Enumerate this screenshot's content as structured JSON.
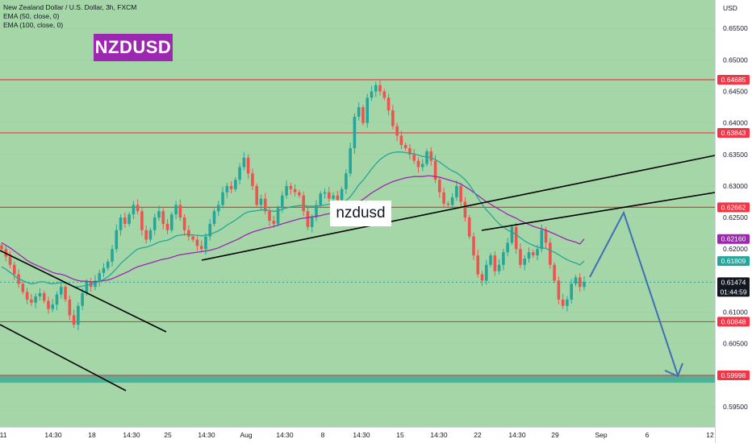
{
  "legend": {
    "symbol": "New Zealand Dollar / U.S. Dollar, 3h, FXCM",
    "ema50": "EMA (50, close, 0)",
    "ema100": "EMA (100, close, 0)"
  },
  "title_badge": "NZDUSD",
  "label_badge": "nzdusd",
  "colors": {
    "background": "#a5d6a7",
    "zone": "#4db394",
    "bull": "#26a69a",
    "bear": "#ef5350",
    "ema50": "#26a69a",
    "ema100": "#9c27b0",
    "hline": "#f23645",
    "trend": "#000000",
    "projection": "#3f6fb5"
  },
  "chart_data": {
    "type": "line",
    "title": "New Zealand Dollar / U.S. Dollar, 3h, FXCM",
    "currency": "USD",
    "ylim": [
      0.5918,
      0.6595
    ],
    "price_ticks": [
      "0.65500",
      "0.65000",
      "0.64500",
      "0.64000",
      "0.63500",
      "0.63000",
      "0.62500",
      "0.62000",
      "0.61500",
      "0.61000",
      "0.60500",
      "0.60000",
      "0.59500"
    ],
    "x_ticks": [
      "11",
      "14:30",
      "18",
      "14:30",
      "25",
      "14:30",
      "Aug",
      "14:30",
      "8",
      "14:30",
      "15",
      "14:30",
      "22",
      "14:30",
      "29",
      "Sep",
      "6",
      "12"
    ],
    "price_labels": [
      {
        "text": "0.64685",
        "value": 0.64685,
        "color": "#f23645"
      },
      {
        "text": "0.63843",
        "value": 0.63843,
        "color": "#f23645"
      },
      {
        "text": "0.62662",
        "value": 0.62662,
        "color": "#f23645"
      },
      {
        "text": "0.62160",
        "value": 0.6216,
        "color": "#9c27b0"
      },
      {
        "text": "0.61809",
        "value": 0.61809,
        "color": "#26a69a"
      },
      {
        "text": "0.61474",
        "value": 0.61474,
        "color": "#131722",
        "sub": "01:44:59"
      },
      {
        "text": "0.60848",
        "value": 0.60848,
        "color": "#f23645"
      },
      {
        "text": "0.59998",
        "value": 0.59998,
        "color": "#f23645"
      }
    ],
    "horizontal_levels": [
      0.64685,
      0.63843,
      0.62662,
      0.60848,
      0.59998
    ],
    "support_zone": [
      0.5988,
      0.6
    ],
    "last_price": 0.61474,
    "countdown": "01:44:59",
    "close_series": [
      0.62,
      0.6188,
      0.6175,
      0.616,
      0.6145,
      0.6132,
      0.612,
      0.6115,
      0.6125,
      0.613,
      0.6118,
      0.6105,
      0.6112,
      0.6128,
      0.614,
      0.612,
      0.6095,
      0.608,
      0.611,
      0.613,
      0.6148,
      0.614,
      0.615,
      0.6162,
      0.617,
      0.618,
      0.62,
      0.623,
      0.625,
      0.624,
      0.6255,
      0.627,
      0.626,
      0.623,
      0.6215,
      0.623,
      0.625,
      0.626,
      0.624,
      0.623,
      0.6255,
      0.627,
      0.625,
      0.623,
      0.622,
      0.6215,
      0.6205,
      0.62,
      0.622,
      0.624,
      0.626,
      0.627,
      0.629,
      0.63,
      0.6295,
      0.631,
      0.633,
      0.6345,
      0.632,
      0.63,
      0.627,
      0.628,
      0.626,
      0.6245,
      0.624,
      0.6265,
      0.6285,
      0.63,
      0.6295,
      0.629,
      0.6285,
      0.626,
      0.6235,
      0.625,
      0.627,
      0.6288,
      0.629,
      0.628,
      0.6285,
      0.6278,
      0.6295,
      0.632,
      0.636,
      0.641,
      0.6425,
      0.64,
      0.644,
      0.645,
      0.646,
      0.645,
      0.644,
      0.642,
      0.6395,
      0.638,
      0.6365,
      0.636,
      0.635,
      0.634,
      0.633,
      0.6335,
      0.6355,
      0.634,
      0.631,
      0.629,
      0.6272,
      0.627,
      0.6282,
      0.63,
      0.6275,
      0.625,
      0.622,
      0.619,
      0.616,
      0.615,
      0.6175,
      0.619,
      0.6165,
      0.6175,
      0.6195,
      0.621,
      0.6235,
      0.62,
      0.6175,
      0.6185,
      0.6195,
      0.619,
      0.62,
      0.623,
      0.621,
      0.6175,
      0.615,
      0.612,
      0.611,
      0.612,
      0.6145,
      0.6155,
      0.614,
      0.6148
    ],
    "ema50": [
      0.6172,
      0.6168,
      0.6163,
      0.6158,
      0.6153,
      0.615,
      0.6147,
      0.6145,
      0.6146,
      0.6148,
      0.6148,
      0.6146,
      0.6145,
      0.6146,
      0.6147,
      0.6146,
      0.6144,
      0.614,
      0.614,
      0.6141,
      0.6143,
      0.6144,
      0.6146,
      0.6149,
      0.6152,
      0.6156,
      0.6162,
      0.6169,
      0.6177,
      0.6183,
      0.6189,
      0.6195,
      0.62,
      0.6202,
      0.6203,
      0.6205,
      0.6208,
      0.6211,
      0.6213,
      0.6214,
      0.6217,
      0.6221,
      0.6222,
      0.6223,
      0.6223,
      0.6222,
      0.6222,
      0.6221,
      0.6222,
      0.6223,
      0.6226,
      0.6229,
      0.6233,
      0.6238,
      0.6242,
      0.6246,
      0.6251,
      0.6256,
      0.6259,
      0.626,
      0.6261,
      0.6262,
      0.6262,
      0.6261,
      0.626,
      0.6261,
      0.6263,
      0.6265,
      0.6267,
      0.6268,
      0.6269,
      0.6269,
      0.6268,
      0.6268,
      0.6268,
      0.6269,
      0.627,
      0.6271,
      0.6272,
      0.6273,
      0.6274,
      0.6277,
      0.6283,
      0.6292,
      0.6302,
      0.6309,
      0.6318,
      0.6327,
      0.6335,
      0.6342,
      0.6347,
      0.6351,
      0.6353,
      0.6354,
      0.6354,
      0.6353,
      0.6352,
      0.6351,
      0.6349,
      0.6347,
      0.6346,
      0.6345,
      0.6342,
      0.6338,
      0.6333,
      0.6328,
      0.6324,
      0.6321,
      0.6316,
      0.631,
      0.6302,
      0.6292,
      0.6281,
      0.6271,
      0.6262,
      0.6255,
      0.6247,
      0.624,
      0.6235,
      0.623,
      0.6227,
      0.6223,
      0.6218,
      0.6213,
      0.6209,
      0.6206,
      0.6203,
      0.6202,
      0.6201,
      0.6198,
      0.6195,
      0.6191,
      0.6187,
      0.6183,
      0.618,
      0.6178,
      0.6175,
      0.6181
    ],
    "ema100": [
      0.621,
      0.6206,
      0.6202,
      0.6197,
      0.6192,
      0.6187,
      0.6182,
      0.6178,
      0.6175,
      0.6172,
      0.6169,
      0.6166,
      0.6163,
      0.6161,
      0.616,
      0.6158,
      0.6155,
      0.6152,
      0.615,
      0.6149,
      0.6149,
      0.6148,
      0.6148,
      0.6149,
      0.615,
      0.6151,
      0.6153,
      0.6156,
      0.6159,
      0.6162,
      0.6165,
      0.6169,
      0.6172,
      0.6174,
      0.6176,
      0.6178,
      0.618,
      0.6182,
      0.6184,
      0.6185,
      0.6187,
      0.6189,
      0.6191,
      0.6192,
      0.6193,
      0.6194,
      0.6195,
      0.6196,
      0.6197,
      0.6198,
      0.62,
      0.6202,
      0.6205,
      0.6208,
      0.6211,
      0.6214,
      0.6217,
      0.6221,
      0.6224,
      0.6227,
      0.6229,
      0.6231,
      0.6233,
      0.6234,
      0.6236,
      0.6238,
      0.624,
      0.6242,
      0.6244,
      0.6246,
      0.6248,
      0.6249,
      0.625,
      0.6251,
      0.6252,
      0.6253,
      0.6255,
      0.6256,
      0.6258,
      0.6259,
      0.6261,
      0.6263,
      0.6266,
      0.627,
      0.6275,
      0.6279,
      0.6284,
      0.6289,
      0.6293,
      0.6297,
      0.6301,
      0.6304,
      0.6307,
      0.6309,
      0.6311,
      0.6313,
      0.6314,
      0.6315,
      0.6315,
      0.6315,
      0.6316,
      0.6316,
      0.6315,
      0.6314,
      0.6312,
      0.631,
      0.6308,
      0.6306,
      0.6303,
      0.6299,
      0.6295,
      0.629,
      0.6285,
      0.628,
      0.6275,
      0.6271,
      0.6267,
      0.6263,
      0.6259,
      0.6255,
      0.6252,
      0.6249,
      0.6245,
      0.6242,
      0.6239,
      0.6236,
      0.6234,
      0.6232,
      0.623,
      0.6227,
      0.6224,
      0.6221,
      0.6218,
      0.6215,
      0.6213,
      0.6211,
      0.6208,
      0.6216
    ]
  }
}
